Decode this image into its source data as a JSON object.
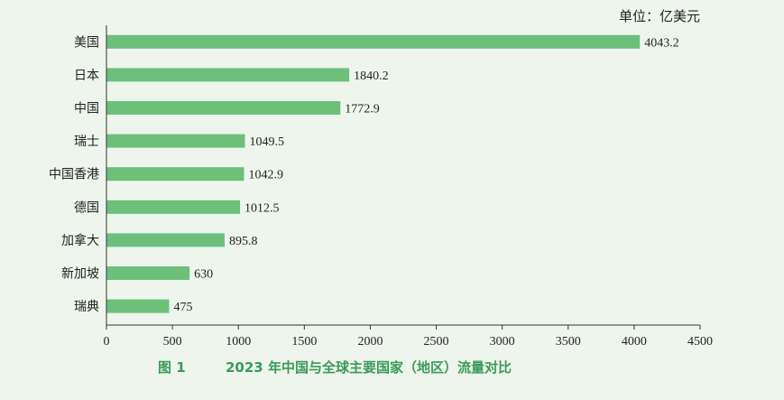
{
  "unit_label": "单位：亿美元",
  "caption": {
    "number": "图 1",
    "title": "2023 年中国与全球主要国家（地区）流量对比"
  },
  "colors": {
    "bar": "#6cc07a",
    "axis": "#333333",
    "caption": "#3a9a57"
  },
  "chart_data": {
    "type": "bar",
    "orientation": "horizontal",
    "categories": [
      "美国",
      "日本",
      "中国",
      "瑞士",
      "中国香港",
      "德国",
      "加拿大",
      "新加坡",
      "瑞典"
    ],
    "values": [
      4043.2,
      1840.2,
      1772.9,
      1049.5,
      1042.9,
      1012.5,
      895.8,
      630,
      475
    ],
    "value_labels": [
      "4043.2",
      "1840.2",
      "1772.9",
      "1049.5",
      "1042.9",
      "1012.5",
      "895.8",
      "630",
      "475"
    ],
    "xlim": [
      0,
      4500
    ],
    "xticks": [
      "0",
      "500",
      "1000",
      "1500",
      "2000",
      "2500",
      "3000",
      "3500",
      "4000",
      "4500"
    ],
    "grid": false,
    "legend": "none"
  }
}
